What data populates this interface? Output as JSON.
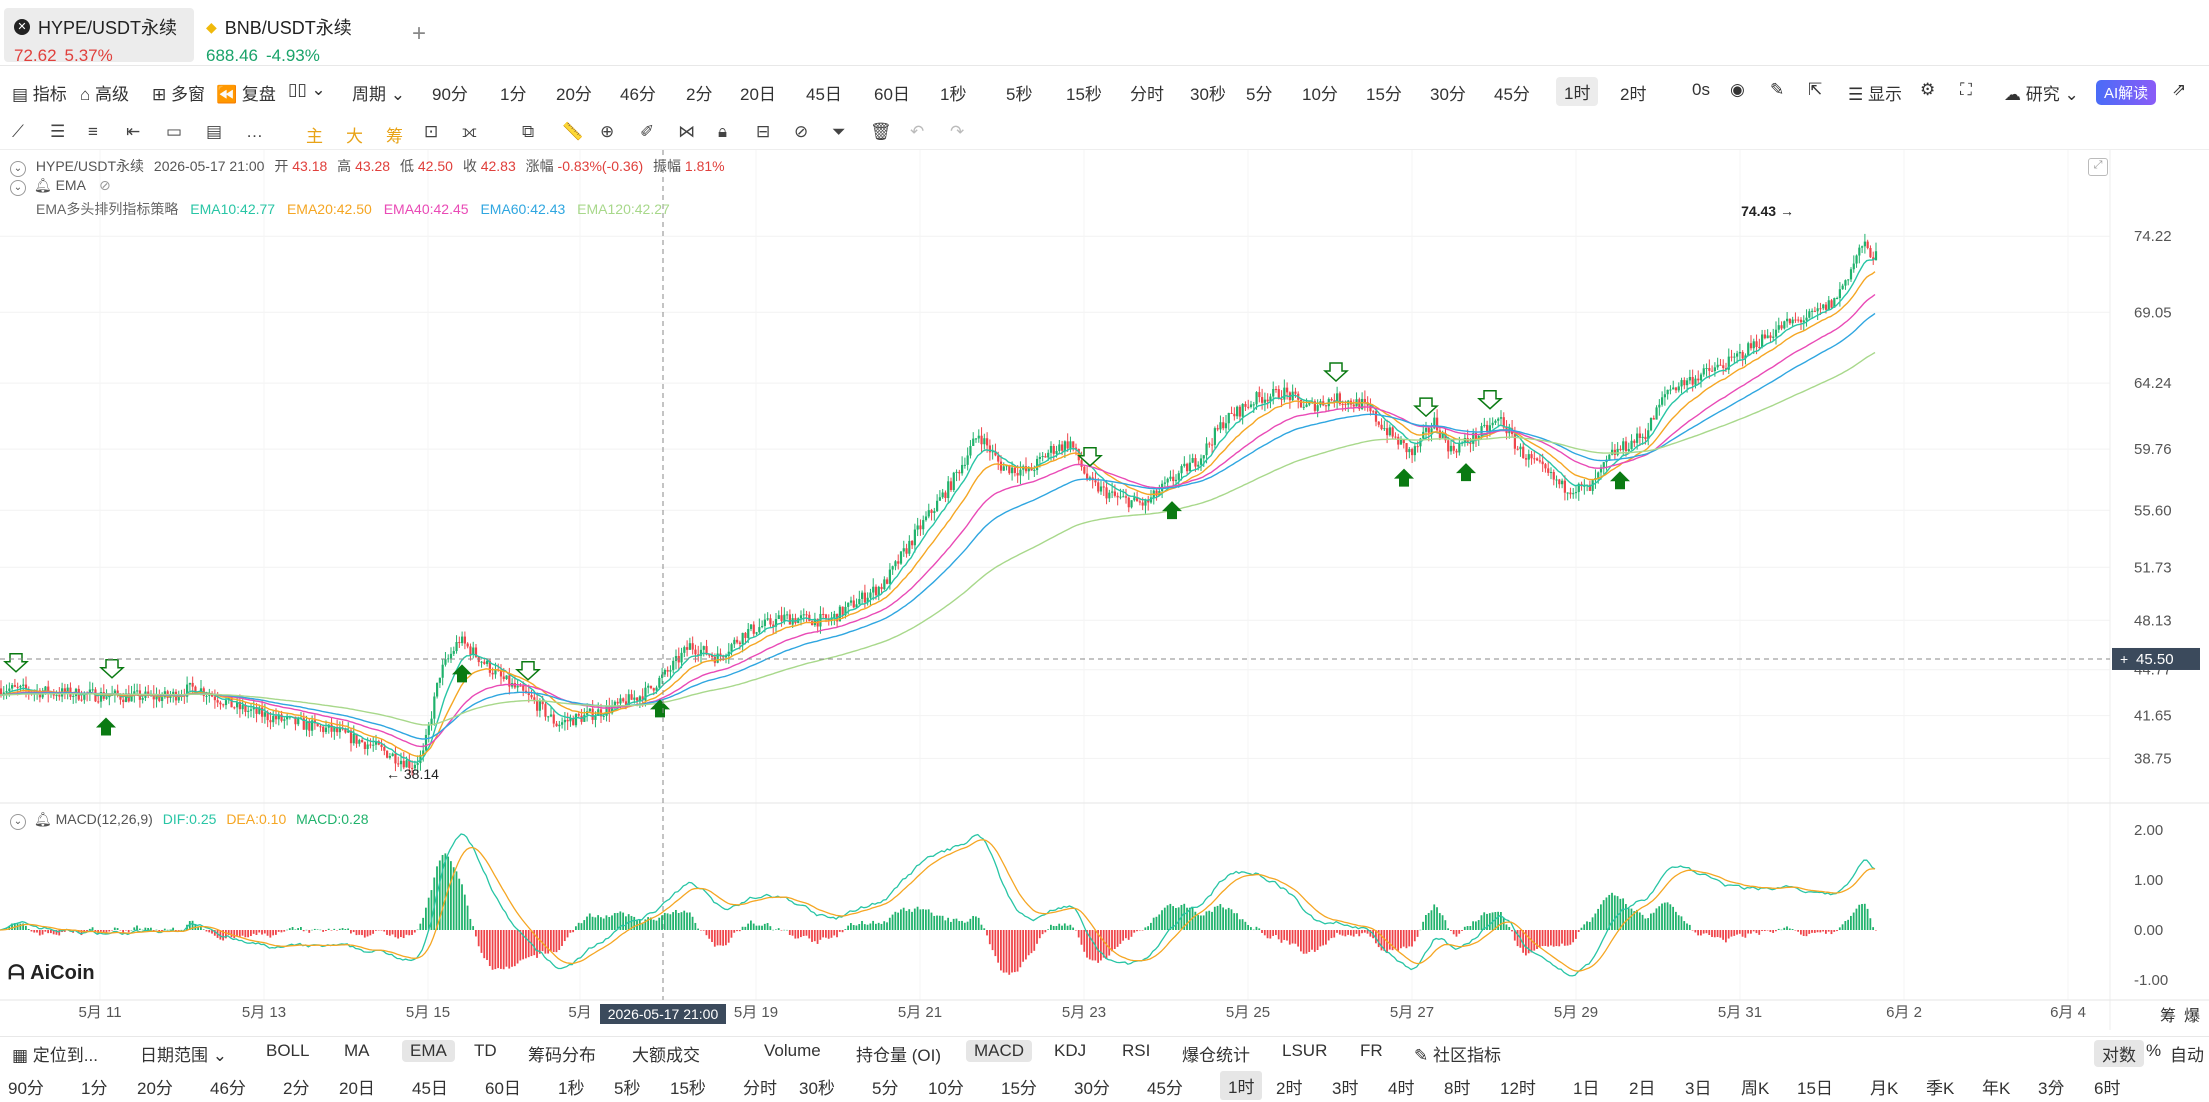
{
  "tabs": [
    {
      "name": "HYPE/USDT永续",
      "price": "72.62",
      "change": "5.37%",
      "color": "#e0403c",
      "active": true
    },
    {
      "name": "BNB/USDT永续",
      "price": "688.46",
      "change": "-4.93%",
      "color": "#1aa36a",
      "active": false
    }
  ],
  "tab_add": "+",
  "toolbar": {
    "indicators": "指标",
    "advanced": "高级",
    "multi_window": "多窗",
    "replay": "复盘",
    "period": "周期",
    "intervals": [
      "90分",
      "1分",
      "20分",
      "46分",
      "2分",
      "20日",
      "45日",
      "60日",
      "1秒",
      "5秒",
      "15秒",
      "分时",
      "30秒",
      "5分",
      "10分",
      "15分",
      "30分",
      "45分",
      "1时",
      "2时"
    ],
    "selected_interval": "1时",
    "zero_s": "0s",
    "display": "显示",
    "research": "研究",
    "ai": "AI解读"
  },
  "drawing_tools": [
    "主",
    "大",
    "筹"
  ],
  "legend": {
    "symbol": "HYPE/USDT永续",
    "datetime": "2026-05-17 21:00",
    "open_label": "开",
    "open": "43.18",
    "high_label": "高",
    "high": "43.28",
    "low_label": "低",
    "low": "42.50",
    "close_label": "收",
    "close": "42.83",
    "change_label": "涨幅",
    "change": "-0.83%(-0.36)",
    "amp_label": "振幅",
    "amp": "1.81%",
    "ema_label": "EMA",
    "strategy": "EMA多头排列指标策略",
    "ema10": "EMA10:42.77",
    "ema20": "EMA20:42.50",
    "ema40": "EMA40:42.45",
    "ema60": "EMA60:42.43",
    "ema120": "EMA120:42.27",
    "macd_label": "MACD(12,26,9)",
    "dif": "DIF:0.25",
    "dea": "DEA:0.10",
    "macd": "MACD:0.28"
  },
  "colors": {
    "up": "#20b26c",
    "down": "#ef454a",
    "ema10": "#28c5a5",
    "ema20": "#f5a623",
    "ema40": "#e94ab6",
    "ema60": "#2fa6e0",
    "ema120": "#a8d88b",
    "signal": "#0a7a12"
  },
  "chart_data": {
    "type": "candlestick",
    "x_ticks": [
      "5月 11",
      "5月 13",
      "5月 15",
      "5月",
      "5月 19",
      "5月 21",
      "5月 23",
      "5月 25",
      "5月 27",
      "5月 29",
      "5月 31",
      "6月 2",
      "6月 4"
    ],
    "y_ticks": [
      "74.22",
      "69.05",
      "64.24",
      "59.76",
      "55.60",
      "51.73",
      "48.13",
      "44.77",
      "41.65",
      "38.75"
    ],
    "crosshair_price": "45.50",
    "crosshair_time": "2026-05-17 21:00",
    "high_marker": "74.43",
    "low_marker": "38.14",
    "close_path": [
      [
        0,
        43.5
      ],
      [
        20,
        43.2
      ],
      [
        40,
        43.0
      ],
      [
        60,
        42.9
      ],
      [
        70,
        43.6
      ],
      [
        85,
        42.2
      ],
      [
        100,
        41.4
      ],
      [
        120,
        40.6
      ],
      [
        135,
        39.5
      ],
      [
        148,
        38.3
      ],
      [
        152,
        39.0
      ],
      [
        158,
        44.5
      ],
      [
        165,
        46.8
      ],
      [
        172,
        45.6
      ],
      [
        180,
        44.2
      ],
      [
        192,
        42.6
      ],
      [
        200,
        41.1
      ],
      [
        210,
        41.6
      ],
      [
        222,
        42.3
      ],
      [
        232,
        43.2
      ],
      [
        240,
        44.6
      ],
      [
        248,
        46.4
      ],
      [
        258,
        45.6
      ],
      [
        268,
        47.3
      ],
      [
        282,
        48.3
      ],
      [
        298,
        48.1
      ],
      [
        308,
        49.4
      ],
      [
        318,
        50.6
      ],
      [
        330,
        54.2
      ],
      [
        342,
        57.4
      ],
      [
        352,
        60.8
      ],
      [
        360,
        58.6
      ],
      [
        370,
        58.2
      ],
      [
        378,
        59.7
      ],
      [
        385,
        60.2
      ],
      [
        392,
        57.4
      ],
      [
        402,
        56.4
      ],
      [
        412,
        56.0
      ],
      [
        420,
        57.4
      ],
      [
        432,
        59.3
      ],
      [
        440,
        61.6
      ],
      [
        452,
        63.2
      ],
      [
        462,
        63.6
      ],
      [
        470,
        62.6
      ],
      [
        480,
        63.2
      ],
      [
        490,
        62.8
      ],
      [
        500,
        60.8
      ],
      [
        508,
        59.4
      ],
      [
        516,
        61.6
      ],
      [
        522,
        59.7
      ],
      [
        530,
        60.5
      ],
      [
        540,
        61.8
      ],
      [
        546,
        59.8
      ],
      [
        552,
        58.8
      ],
      [
        562,
        57.2
      ],
      [
        572,
        57.0
      ],
      [
        580,
        59.4
      ],
      [
        592,
        60.8
      ],
      [
        600,
        63.8
      ],
      [
        612,
        64.8
      ],
      [
        622,
        65.6
      ],
      [
        632,
        67.0
      ],
      [
        642,
        68.2
      ],
      [
        652,
        68.8
      ],
      [
        660,
        69.8
      ],
      [
        665,
        71.6
      ],
      [
        670,
        73.6
      ],
      [
        675,
        72.8
      ]
    ],
    "macd_range": [
      -1.0,
      2.0
    ]
  },
  "bottom": {
    "locate": "定位到...",
    "date_range": "日期范围",
    "indicators": [
      "BOLL",
      "MA",
      "EMA",
      "TD",
      "筹码分布",
      "大额成交"
    ],
    "sub_indicators": [
      "Volume",
      "持仓量 (OI)",
      "MACD",
      "KDJ",
      "RSI",
      "爆仓统计",
      "LSUR",
      "FR"
    ],
    "community": "社区指标",
    "log": "对数",
    "pct": "%",
    "auto": "自动",
    "intervals": [
      "90分",
      "1分",
      "20分",
      "46分",
      "2分",
      "20日",
      "45日",
      "60日",
      "1秒",
      "5秒",
      "15秒",
      "分时",
      "30秒",
      "5分",
      "10分",
      "15分",
      "30分",
      "45分",
      "1时",
      "2时",
      "3时",
      "4时",
      "8时",
      "12时",
      "1日",
      "2日",
      "3日",
      "周K",
      "15日",
      "月K",
      "季K",
      "年K",
      "3分",
      "6时"
    ],
    "selected": "1时",
    "side_labels": [
      "筹",
      "爆"
    ]
  },
  "logo": "AiCoin"
}
